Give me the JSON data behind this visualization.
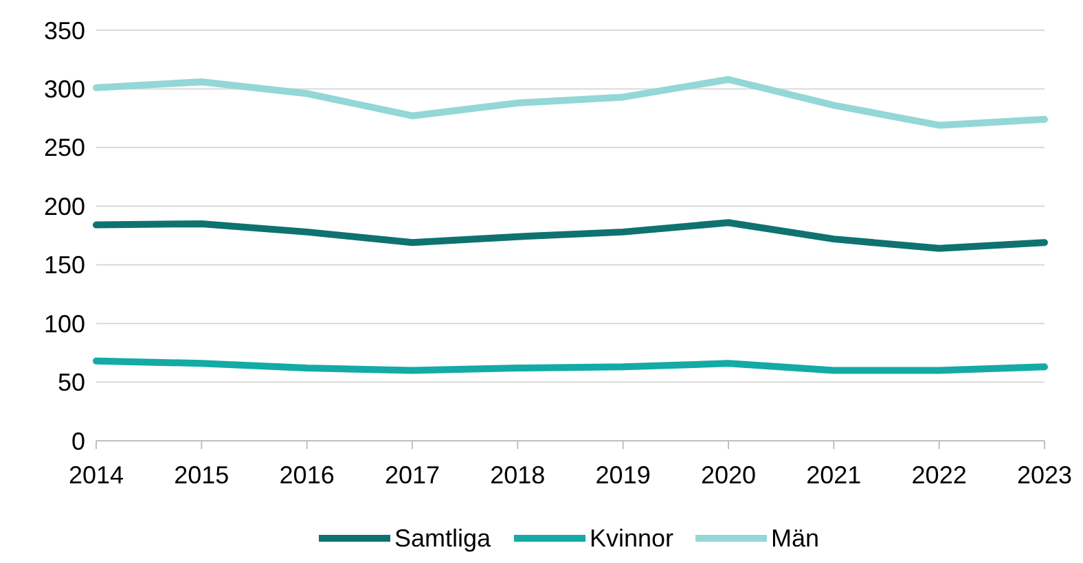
{
  "chart_data": {
    "type": "line",
    "categories": [
      "2014",
      "2015",
      "2016",
      "2017",
      "2018",
      "2019",
      "2020",
      "2021",
      "2022",
      "2023"
    ],
    "series": [
      {
        "name": "Samtliga",
        "color": "#0e7270",
        "values": [
          184,
          185,
          178,
          169,
          174,
          178,
          186,
          172,
          164,
          169
        ]
      },
      {
        "name": "Kvinnor",
        "color": "#14aaa5",
        "values": [
          68,
          66,
          62,
          60,
          62,
          63,
          66,
          60,
          60,
          63
        ]
      },
      {
        "name": "Män",
        "color": "#93d7d6",
        "values": [
          301,
          306,
          296,
          277,
          288,
          293,
          308,
          286,
          269,
          274
        ]
      }
    ],
    "ylim": [
      0,
      350
    ],
    "yticks": [
      0,
      50,
      100,
      150,
      200,
      250,
      300,
      350
    ],
    "grid": "y",
    "legend": "bottom",
    "marker": "none",
    "line_style": "solid"
  }
}
